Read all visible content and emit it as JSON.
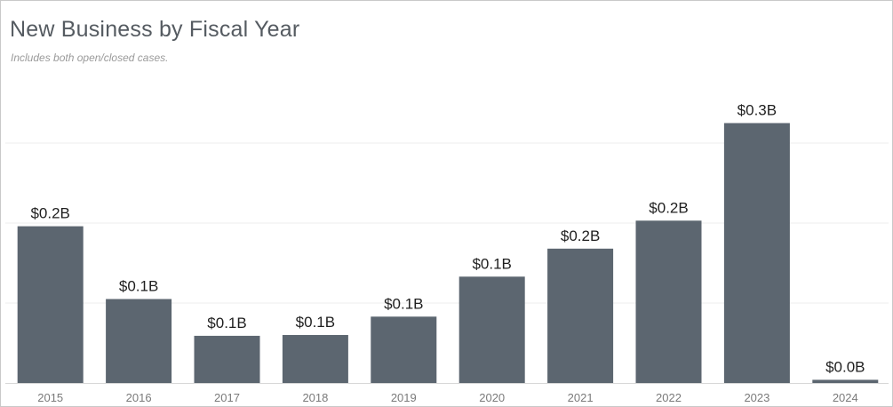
{
  "chart": {
    "title": "New Business by Fiscal Year",
    "subtitle": "Includes both open/closed cases."
  },
  "colors": {
    "bar": "#5c6670",
    "gridline": "#ececec",
    "label": "#1f1f1f",
    "tick": "#7a7a7a"
  },
  "chart_data": {
    "type": "bar",
    "title": "New Business by Fiscal Year",
    "subtitle": "Includes both open/closed cases.",
    "xlabel": "",
    "ylabel": "",
    "categories": [
      "2015",
      "2016",
      "2017",
      "2018",
      "2019",
      "2020",
      "2021",
      "2022",
      "2023",
      "2024"
    ],
    "values": [
      0.196,
      0.105,
      0.059,
      0.06,
      0.083,
      0.133,
      0.168,
      0.203,
      0.325,
      0.004
    ],
    "value_labels": [
      "$0.2B",
      "$0.1B",
      "$0.1B",
      "$0.1B",
      "$0.1B",
      "$0.1B",
      "$0.2B",
      "$0.2B",
      "$0.3B",
      "$0.0B"
    ],
    "ylim": [
      0,
      0.35
    ],
    "grid": true,
    "legend": "none"
  }
}
